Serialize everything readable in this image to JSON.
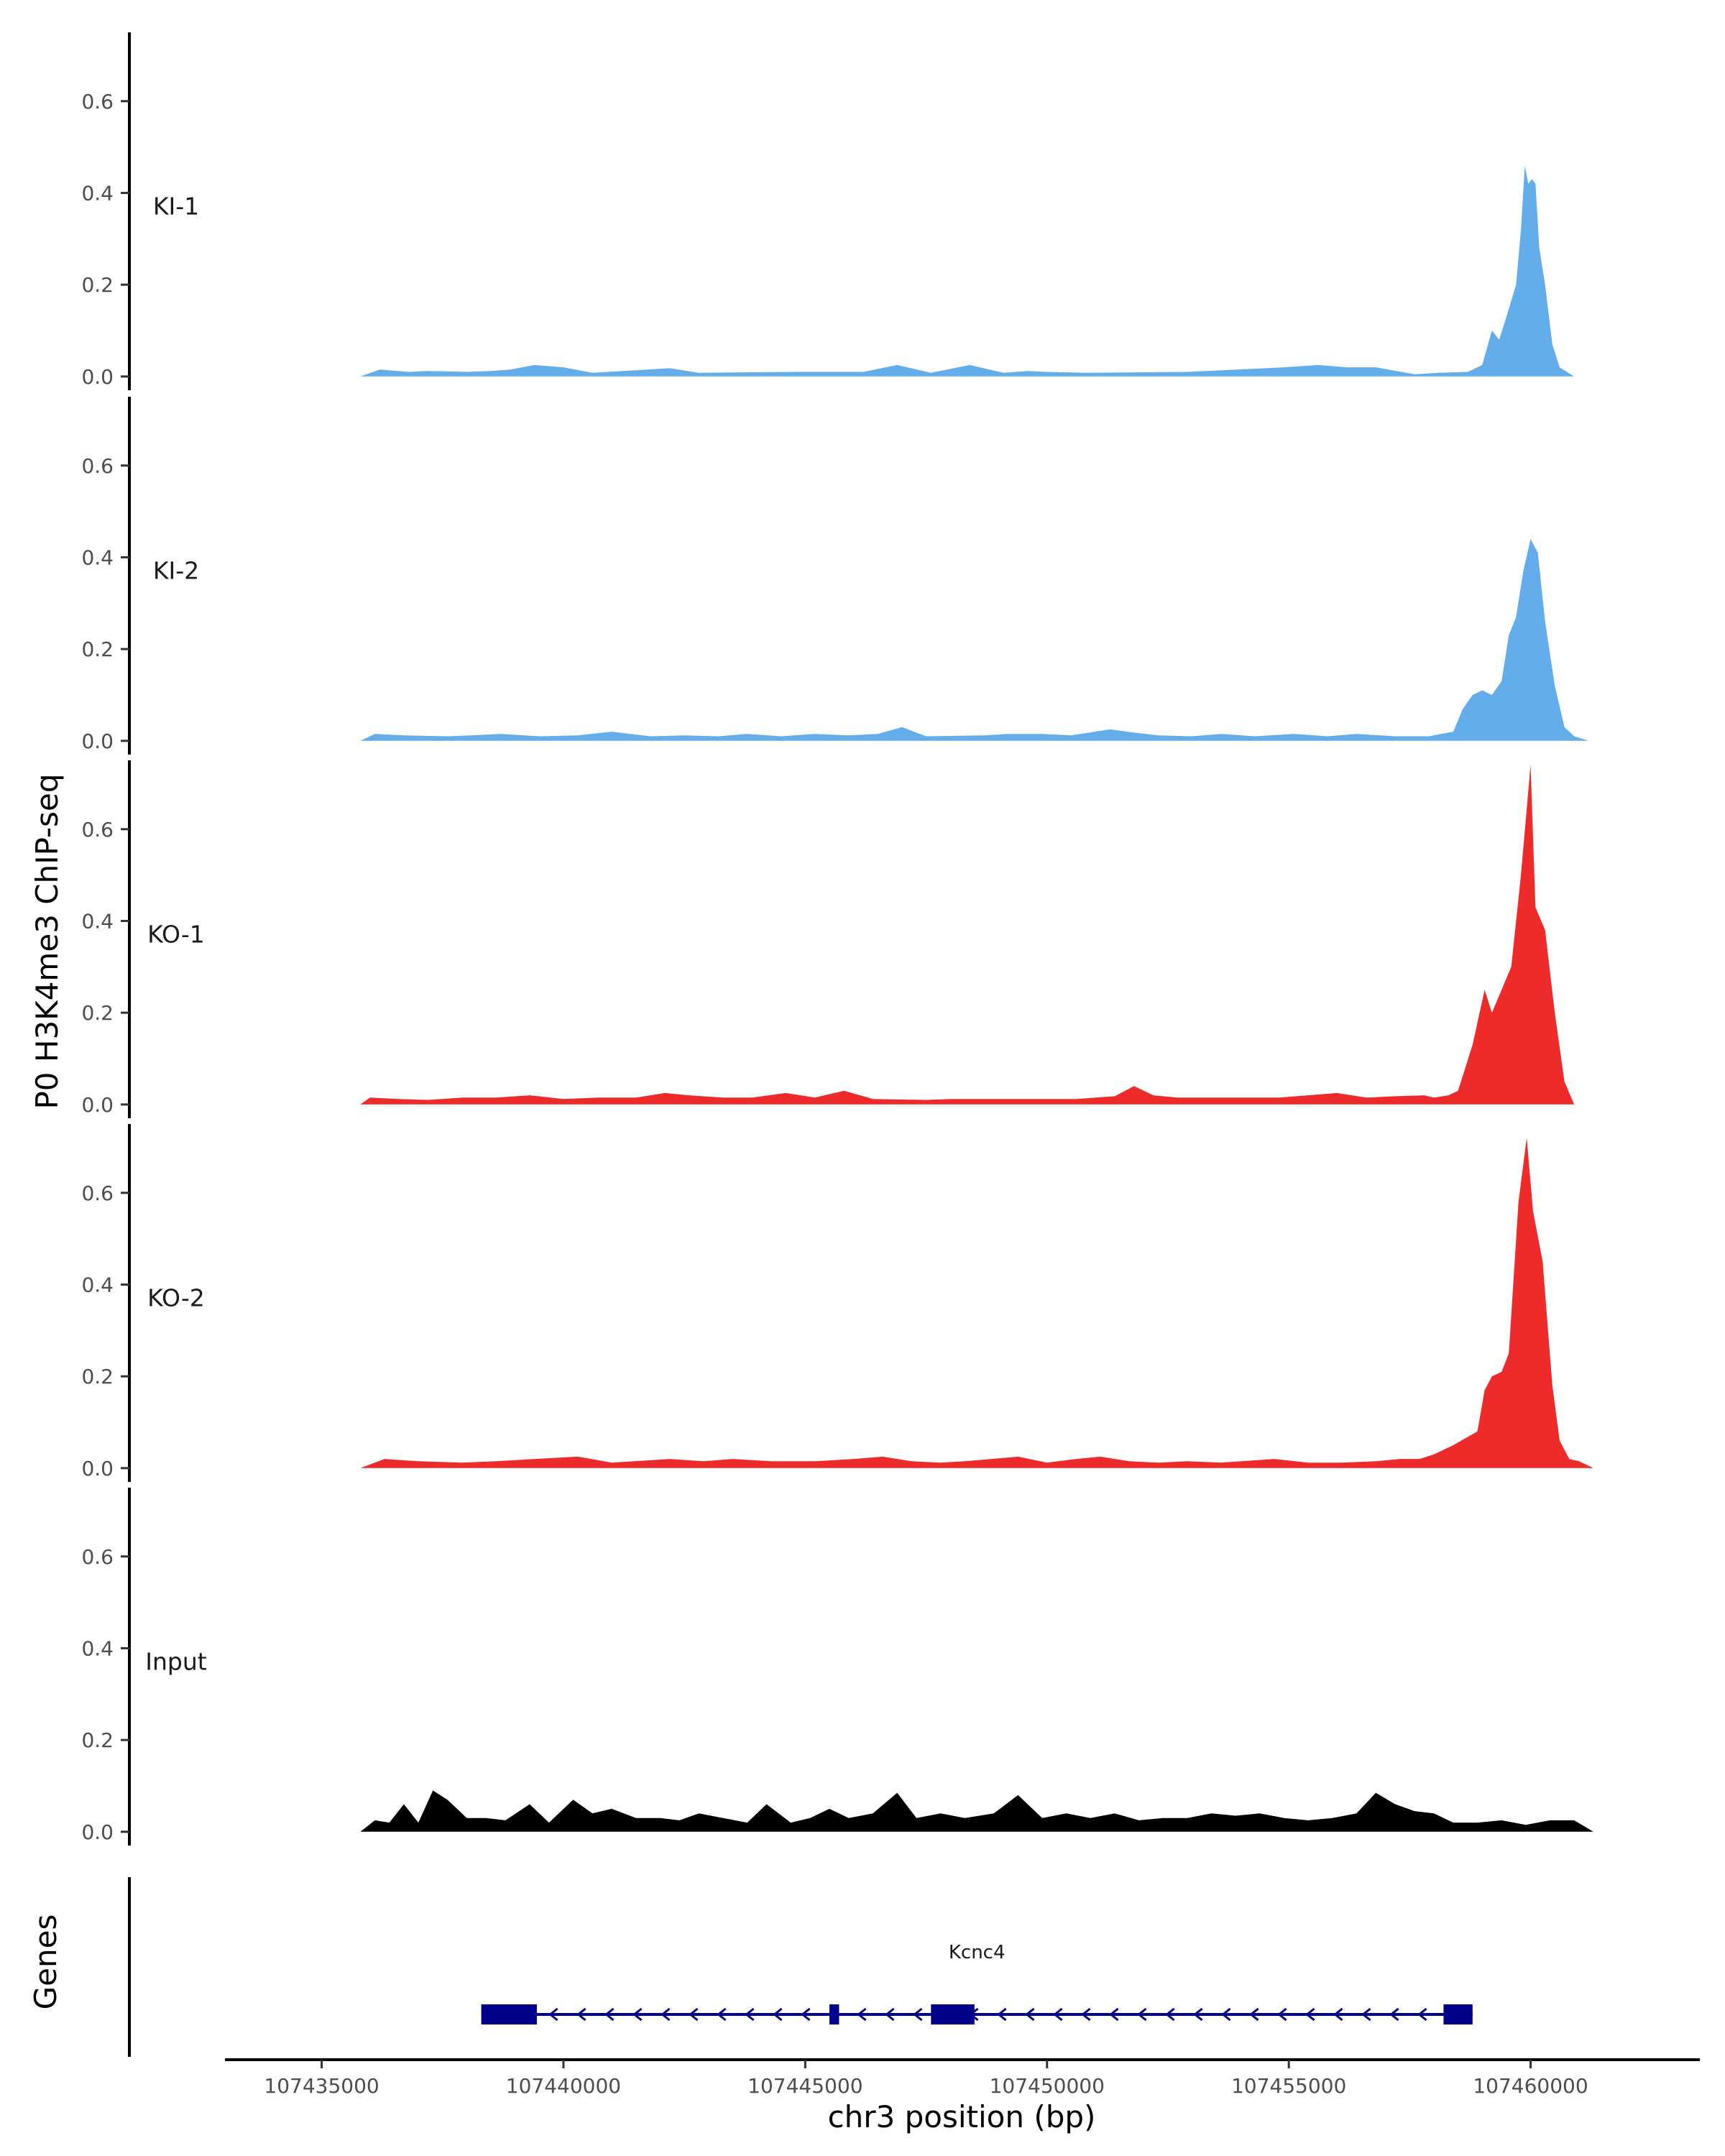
{
  "chart_data": {
    "type": "area",
    "ylabel": "P0 H3K4me3 ChIP-seq",
    "xlabel": "chr3 position (bp)",
    "y_axis": {
      "ylim": [
        -0.03,
        0.75
      ],
      "ticks": [
        "0.0",
        "0.2",
        "0.4",
        "0.6"
      ]
    },
    "x_axis": {
      "xlim": [
        107433000,
        107463500
      ],
      "ticks": [
        "107435000",
        "107440000",
        "107445000",
        "107450000",
        "107455000",
        "107460000"
      ]
    },
    "data_range": [
      107435800,
      107461300
    ],
    "grid": false,
    "legend": "none",
    "tracks": [
      {
        "name": "KI-1",
        "color": "#63aeea",
        "baseline": 0.0,
        "start": 107435800,
        "end": 107460900,
        "points": [
          [
            107436200,
            0.015
          ],
          [
            107436800,
            0.01
          ],
          [
            107437200,
            0.012
          ],
          [
            107438000,
            0.01
          ],
          [
            107438500,
            0.012
          ],
          [
            107438900,
            0.015
          ],
          [
            107439400,
            0.025
          ],
          [
            107440000,
            0.02
          ],
          [
            107440600,
            0.008
          ],
          [
            107442200,
            0.018
          ],
          [
            107442800,
            0.008
          ],
          [
            107444800,
            0.01
          ],
          [
            107446200,
            0.01
          ],
          [
            107446900,
            0.025
          ],
          [
            107447600,
            0.008
          ],
          [
            107448400,
            0.025
          ],
          [
            107449100,
            0.008
          ],
          [
            107449600,
            0.012
          ],
          [
            107450000,
            0.01
          ],
          [
            107450800,
            0.008
          ],
          [
            107452900,
            0.01
          ],
          [
            107454900,
            0.02
          ],
          [
            107455600,
            0.025
          ],
          [
            107456200,
            0.02
          ],
          [
            107456800,
            0.02
          ],
          [
            107457600,
            0.005
          ],
          [
            107458100,
            0.008
          ],
          [
            107458700,
            0.01
          ],
          [
            107459000,
            0.025
          ],
          [
            107459200,
            0.1
          ],
          [
            107459350,
            0.08
          ],
          [
            107459500,
            0.13
          ],
          [
            107459700,
            0.2
          ],
          [
            107459800,
            0.32
          ],
          [
            107459880,
            0.46
          ],
          [
            107459950,
            0.42
          ],
          [
            107460030,
            0.43
          ],
          [
            107460100,
            0.42
          ],
          [
            107460180,
            0.28
          ],
          [
            107460300,
            0.2
          ],
          [
            107460450,
            0.07
          ],
          [
            107460600,
            0.02
          ],
          [
            107460900,
            0.0
          ]
        ]
      },
      {
        "name": "KI-2",
        "color": "#63aeea",
        "baseline": 0.0,
        "start": 107435800,
        "end": 107461200,
        "points": [
          [
            107436100,
            0.015
          ],
          [
            107436700,
            0.012
          ],
          [
            107437600,
            0.01
          ],
          [
            107438100,
            0.012
          ],
          [
            107438700,
            0.015
          ],
          [
            107439500,
            0.01
          ],
          [
            107440300,
            0.012
          ],
          [
            107441000,
            0.02
          ],
          [
            107441800,
            0.01
          ],
          [
            107442500,
            0.012
          ],
          [
            107443200,
            0.01
          ],
          [
            107443800,
            0.015
          ],
          [
            107444500,
            0.01
          ],
          [
            107445200,
            0.015
          ],
          [
            107445900,
            0.012
          ],
          [
            107446500,
            0.015
          ],
          [
            107447000,
            0.03
          ],
          [
            107447500,
            0.01
          ],
          [
            107448700,
            0.012
          ],
          [
            107449200,
            0.015
          ],
          [
            107449900,
            0.015
          ],
          [
            107450500,
            0.012
          ],
          [
            107451300,
            0.025
          ],
          [
            107451800,
            0.018
          ],
          [
            107452300,
            0.012
          ],
          [
            107453000,
            0.01
          ],
          [
            107453600,
            0.015
          ],
          [
            107454300,
            0.01
          ],
          [
            107455100,
            0.015
          ],
          [
            107455800,
            0.01
          ],
          [
            107456400,
            0.015
          ],
          [
            107457200,
            0.01
          ],
          [
            107457900,
            0.01
          ],
          [
            107458400,
            0.02
          ],
          [
            107458600,
            0.07
          ],
          [
            107458800,
            0.1
          ],
          [
            107459000,
            0.11
          ],
          [
            107459200,
            0.1
          ],
          [
            107459400,
            0.13
          ],
          [
            107459550,
            0.23
          ],
          [
            107459700,
            0.27
          ],
          [
            107459850,
            0.37
          ],
          [
            107460000,
            0.44
          ],
          [
            107460150,
            0.41
          ],
          [
            107460300,
            0.26
          ],
          [
            107460500,
            0.12
          ],
          [
            107460700,
            0.03
          ],
          [
            107460900,
            0.01
          ],
          [
            107461200,
            0.0
          ]
        ]
      },
      {
        "name": "KO-1",
        "color": "#ee2b2b",
        "baseline": 0.0,
        "start": 107435800,
        "end": 107460900,
        "points": [
          [
            107436000,
            0.015
          ],
          [
            107436600,
            0.012
          ],
          [
            107437200,
            0.01
          ],
          [
            107437900,
            0.015
          ],
          [
            107438600,
            0.015
          ],
          [
            107439300,
            0.02
          ],
          [
            107440000,
            0.012
          ],
          [
            107440700,
            0.015
          ],
          [
            107441500,
            0.015
          ],
          [
            107442100,
            0.025
          ],
          [
            107442600,
            0.02
          ],
          [
            107443300,
            0.015
          ],
          [
            107443900,
            0.015
          ],
          [
            107444600,
            0.025
          ],
          [
            107445200,
            0.015
          ],
          [
            107445800,
            0.03
          ],
          [
            107446400,
            0.012
          ],
          [
            107447500,
            0.01
          ],
          [
            107448000,
            0.012
          ],
          [
            107449700,
            0.012
          ],
          [
            107450600,
            0.012
          ],
          [
            107451400,
            0.018
          ],
          [
            107451800,
            0.04
          ],
          [
            107452200,
            0.02
          ],
          [
            107452700,
            0.015
          ],
          [
            107454800,
            0.015
          ],
          [
            107456000,
            0.025
          ],
          [
            107456600,
            0.015
          ],
          [
            107457200,
            0.018
          ],
          [
            107457800,
            0.02
          ],
          [
            107458000,
            0.015
          ],
          [
            107458300,
            0.02
          ],
          [
            107458500,
            0.03
          ],
          [
            107458800,
            0.13
          ],
          [
            107459050,
            0.25
          ],
          [
            107459200,
            0.2
          ],
          [
            107459400,
            0.25
          ],
          [
            107459600,
            0.3
          ],
          [
            107459800,
            0.5
          ],
          [
            107460000,
            0.74
          ],
          [
            107460100,
            0.43
          ],
          [
            107460300,
            0.38
          ],
          [
            107460500,
            0.2
          ],
          [
            107460700,
            0.05
          ],
          [
            107460900,
            0.0
          ]
        ]
      },
      {
        "name": "KO-2",
        "color": "#ee2b2b",
        "baseline": 0.0,
        "start": 107435800,
        "end": 107461300,
        "points": [
          [
            107436300,
            0.02
          ],
          [
            107437000,
            0.015
          ],
          [
            107437900,
            0.012
          ],
          [
            107438600,
            0.015
          ],
          [
            107439400,
            0.02
          ],
          [
            107440300,
            0.025
          ],
          [
            107441000,
            0.012
          ],
          [
            107442200,
            0.02
          ],
          [
            107442900,
            0.015
          ],
          [
            107443500,
            0.02
          ],
          [
            107444300,
            0.015
          ],
          [
            107445200,
            0.015
          ],
          [
            107446000,
            0.02
          ],
          [
            107446600,
            0.025
          ],
          [
            107447200,
            0.015
          ],
          [
            107447800,
            0.012
          ],
          [
            107448300,
            0.015
          ],
          [
            107449400,
            0.025
          ],
          [
            107450000,
            0.012
          ],
          [
            107450600,
            0.02
          ],
          [
            107451100,
            0.025
          ],
          [
            107451700,
            0.015
          ],
          [
            107452300,
            0.012
          ],
          [
            107452900,
            0.015
          ],
          [
            107453600,
            0.012
          ],
          [
            107454700,
            0.02
          ],
          [
            107455400,
            0.012
          ],
          [
            107456100,
            0.012
          ],
          [
            107456800,
            0.015
          ],
          [
            107457300,
            0.02
          ],
          [
            107457700,
            0.02
          ],
          [
            107458000,
            0.03
          ],
          [
            107458400,
            0.05
          ],
          [
            107458900,
            0.08
          ],
          [
            107459050,
            0.17
          ],
          [
            107459200,
            0.2
          ],
          [
            107459400,
            0.21
          ],
          [
            107459550,
            0.25
          ],
          [
            107459750,
            0.58
          ],
          [
            107459920,
            0.72
          ],
          [
            107460050,
            0.56
          ],
          [
            107460250,
            0.45
          ],
          [
            107460450,
            0.18
          ],
          [
            107460600,
            0.06
          ],
          [
            107460800,
            0.02
          ],
          [
            107461000,
            0.015
          ],
          [
            107461300,
            0.0
          ]
        ]
      },
      {
        "name": "Input",
        "color": "#000000",
        "baseline": 0.0,
        "start": 107435800,
        "end": 107461300,
        "points": [
          [
            107436100,
            0.025
          ],
          [
            107436400,
            0.02
          ],
          [
            107436700,
            0.06
          ],
          [
            107437000,
            0.02
          ],
          [
            107437300,
            0.09
          ],
          [
            107437600,
            0.07
          ],
          [
            107438000,
            0.03
          ],
          [
            107438400,
            0.03
          ],
          [
            107438800,
            0.025
          ],
          [
            107439300,
            0.06
          ],
          [
            107439700,
            0.02
          ],
          [
            107440200,
            0.07
          ],
          [
            107440600,
            0.04
          ],
          [
            107441000,
            0.05
          ],
          [
            107441500,
            0.03
          ],
          [
            107442000,
            0.03
          ],
          [
            107442400,
            0.025
          ],
          [
            107442800,
            0.04
          ],
          [
            107443300,
            0.03
          ],
          [
            107443800,
            0.02
          ],
          [
            107444200,
            0.06
          ],
          [
            107444700,
            0.02
          ],
          [
            107445100,
            0.03
          ],
          [
            107445500,
            0.05
          ],
          [
            107445900,
            0.03
          ],
          [
            107446400,
            0.04
          ],
          [
            107446900,
            0.085
          ],
          [
            107447300,
            0.03
          ],
          [
            107447800,
            0.04
          ],
          [
            107448300,
            0.03
          ],
          [
            107448900,
            0.04
          ],
          [
            107449400,
            0.08
          ],
          [
            107449900,
            0.03
          ],
          [
            107450400,
            0.04
          ],
          [
            107450900,
            0.03
          ],
          [
            107451400,
            0.04
          ],
          [
            107451900,
            0.025
          ],
          [
            107452400,
            0.03
          ],
          [
            107452900,
            0.03
          ],
          [
            107453400,
            0.04
          ],
          [
            107453900,
            0.035
          ],
          [
            107454400,
            0.04
          ],
          [
            107454900,
            0.03
          ],
          [
            107455400,
            0.025
          ],
          [
            107455900,
            0.03
          ],
          [
            107456400,
            0.04
          ],
          [
            107456800,
            0.085
          ],
          [
            107457200,
            0.06
          ],
          [
            107457600,
            0.045
          ],
          [
            107458000,
            0.04
          ],
          [
            107458400,
            0.02
          ],
          [
            107458900,
            0.02
          ],
          [
            107459400,
            0.025
          ],
          [
            107459900,
            0.015
          ],
          [
            107460400,
            0.025
          ],
          [
            107460900,
            0.025
          ],
          [
            107461300,
            0.0
          ]
        ]
      }
    ],
    "genes_track": {
      "ylabel": "Genes",
      "color": "#00008b",
      "strand": "-",
      "genes": [
        {
          "name": "Kcnc4",
          "start": 107438300,
          "end": 107458800,
          "exons": [
            [
              107438300,
              107439450
            ],
            [
              107445500,
              107445700
            ],
            [
              107447600,
              107448500
            ],
            [
              107458200,
              107458800
            ]
          ]
        }
      ]
    }
  }
}
